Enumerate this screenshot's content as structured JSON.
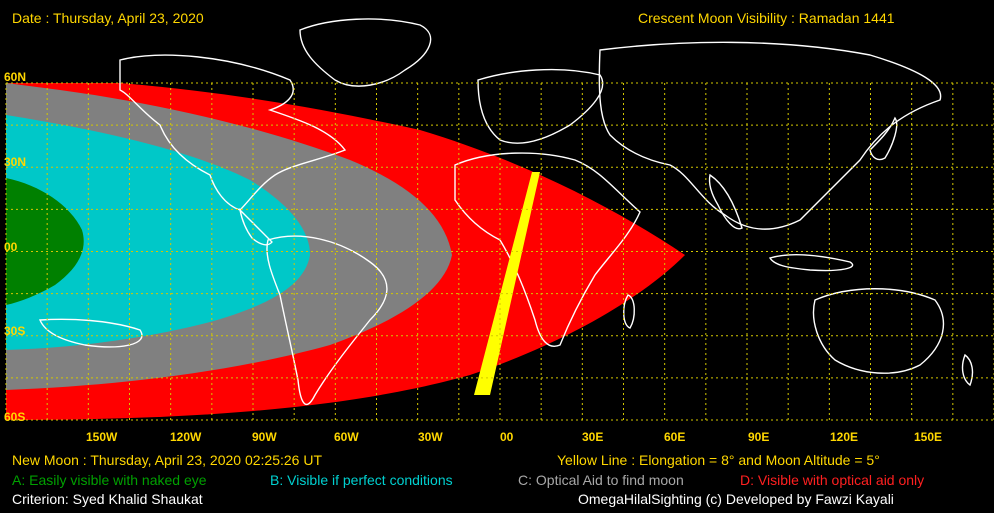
{
  "header": {
    "date": "Date : Thursday, April 23, 2020",
    "title": "Crescent Moon Visibility : Ramadan  1441"
  },
  "map": {
    "lat_labels": [
      "60N",
      "30N",
      "00",
      "30S",
      "60S"
    ],
    "lon_labels": [
      "150W",
      "120W",
      "90W",
      "60W",
      "30W",
      "00",
      "30E",
      "60E",
      "90E",
      "120E",
      "150E"
    ],
    "colors": {
      "background": "#000000",
      "grid": "#d4c800",
      "zone_A": "#008000",
      "zone_B": "#00c8c8",
      "zone_C": "#808080",
      "zone_D": "#ff0000",
      "yellow_line": "#ffff00",
      "coastlines": "#ffffff"
    }
  },
  "footer": {
    "new_moon": "New Moon : Thursday, April 23, 2020  02:25:26  UT",
    "yellow_line": "Yellow Line : Elongation = 8° and Moon Altitude = 5°",
    "legend_a": "A: Easily visible with naked eye",
    "legend_b": "B: Visible if perfect conditions",
    "legend_c": "C: Optical Aid to find moon",
    "legend_d": "D: Visible with optical aid only",
    "criterion": "Criterion: Syed Khalid Shaukat",
    "credit": "OmegaHilalSighting  (c)  Developed by Fawzi Kayali"
  }
}
